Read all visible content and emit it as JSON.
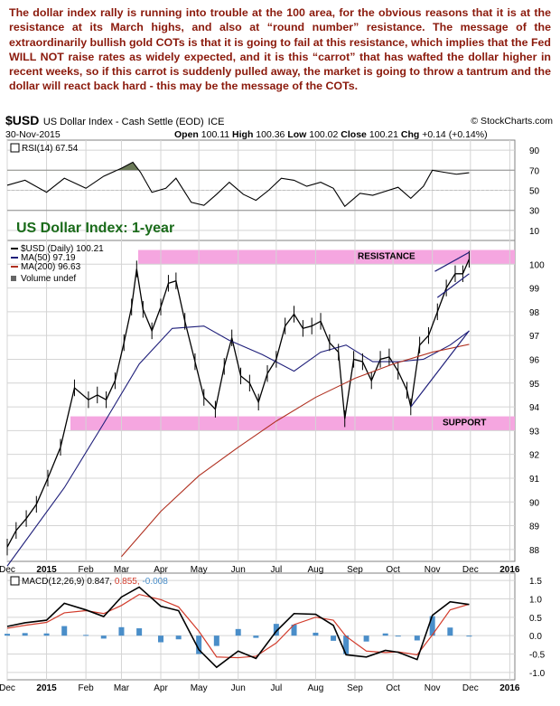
{
  "commentary": "The dollar index rally is running into trouble at the 100 area, for the obvious reasons that it is at the resistance at its March highs, and also at “round number” resistance. The message of the extraordinarily bullish gold COTs is that it is going to fail at this resistance, which implies that the Fed WILL NOT raise rates as widely expected, and it is this “carrot” that has wafted the dollar higher in recent weeks, so if this carrot is suddenly pulled away, the market is going to throw a tantrum and the dollar will react back hard - this may be the message of the COTs.",
  "header": {
    "symbol": "$USD",
    "name": "US Dollar Index - Cash Settle (EOD)",
    "exchange": "ICE",
    "date": "30-Nov-2015",
    "source": "© StockCharts.com",
    "open_label": "Open",
    "open": "100.11",
    "high_label": "High",
    "high": "100.36",
    "low_label": "Low",
    "low": "100.02",
    "close_label": "Close",
    "close": "100.21",
    "chg_label": "Chg",
    "chg": "+0.14 (+0.14%)"
  },
  "chart_data": {
    "type": "line",
    "title": "US Dollar Index: 1-year",
    "x_axis": {
      "ticks": [
        "Dec",
        "2015",
        "Feb",
        "Mar",
        "Apr",
        "May",
        "Jun",
        "Jul",
        "Aug",
        "Sep",
        "Oct",
        "Nov",
        "Dec",
        "2016"
      ],
      "range": [
        "2014-12-01",
        "2016-01-05"
      ]
    },
    "annotations": {
      "resistance": {
        "label": "RESISTANCE",
        "range": [
          100.0,
          100.6
        ]
      },
      "support": {
        "label": "SUPPORT",
        "range": [
          93.0,
          93.6
        ]
      }
    },
    "rsi": {
      "legend": "RSI(14) 67.54",
      "ylim": [
        0,
        100
      ],
      "yticks": [
        10,
        30,
        50,
        70,
        90
      ],
      "levels": [
        30,
        70
      ],
      "x": [
        "2014-12-01",
        "2014-12-15",
        "2015-01-01",
        "2015-01-15",
        "2015-02-01",
        "2015-02-15",
        "2015-03-01",
        "2015-03-10",
        "2015-03-16",
        "2015-03-25",
        "2015-04-05",
        "2015-04-13",
        "2015-04-25",
        "2015-05-05",
        "2015-05-15",
        "2015-05-25",
        "2015-06-05",
        "2015-06-15",
        "2015-06-25",
        "2015-07-05",
        "2015-07-15",
        "2015-07-25",
        "2015-08-05",
        "2015-08-15",
        "2015-08-24",
        "2015-09-05",
        "2015-09-15",
        "2015-09-25",
        "2015-10-05",
        "2015-10-15",
        "2015-10-25",
        "2015-11-01",
        "2015-11-10",
        "2015-11-20",
        "2015-11-30"
      ],
      "values": [
        55,
        60,
        48,
        62,
        52,
        64,
        72,
        78,
        68,
        48,
        52,
        62,
        38,
        35,
        46,
        58,
        46,
        40,
        50,
        62,
        60,
        54,
        58,
        52,
        34,
        47,
        45,
        49,
        53,
        42,
        54,
        70,
        68,
        66,
        67.54
      ]
    },
    "price": {
      "series": [
        {
          "name": "$USD (Daily) 100.21",
          "color": "#000000",
          "x": [
            "2014-12-01",
            "2014-12-08",
            "2014-12-16",
            "2014-12-24",
            "2015-01-02",
            "2015-01-12",
            "2015-01-23",
            "2015-02-03",
            "2015-02-10",
            "2015-02-17",
            "2015-02-24",
            "2015-03-03",
            "2015-03-09",
            "2015-03-13",
            "2015-03-18",
            "2015-03-25",
            "2015-04-01",
            "2015-04-07",
            "2015-04-13",
            "2015-04-20",
            "2015-04-28",
            "2015-05-05",
            "2015-05-14",
            "2015-05-21",
            "2015-05-27",
            "2015-06-03",
            "2015-06-10",
            "2015-06-17",
            "2015-06-24",
            "2015-07-01",
            "2015-07-08",
            "2015-07-15",
            "2015-07-22",
            "2015-07-29",
            "2015-08-05",
            "2015-08-12",
            "2015-08-19",
            "2015-08-24",
            "2015-08-31",
            "2015-09-07",
            "2015-09-14",
            "2015-09-21",
            "2015-09-28",
            "2015-10-05",
            "2015-10-12",
            "2015-10-15",
            "2015-10-22",
            "2015-10-29",
            "2015-11-05",
            "2015-11-12",
            "2015-11-19",
            "2015-11-25",
            "2015-11-30"
          ],
          "values": [
            88.1,
            88.8,
            89.3,
            89.9,
            91.0,
            92.3,
            94.8,
            94.3,
            94.5,
            94.3,
            95.1,
            96.7,
            98.2,
            99.8,
            98.1,
            97.2,
            98.2,
            99.2,
            99.3,
            97.6,
            95.9,
            94.4,
            93.9,
            95.7,
            96.9,
            95.3,
            95.0,
            94.2,
            95.4,
            96.0,
            97.4,
            97.9,
            97.3,
            97.4,
            97.6,
            96.7,
            96.3,
            93.5,
            96.0,
            95.9,
            95.1,
            96.0,
            96.1,
            95.5,
            94.7,
            94.0,
            96.6,
            97.0,
            98.0,
            99.0,
            99.6,
            99.6,
            100.21
          ]
        },
        {
          "name": "MA(50) 97.19",
          "color": "#1f1f7a",
          "x": [
            "2014-12-01",
            "2015-01-15",
            "2015-02-15",
            "2015-03-15",
            "2015-04-10",
            "2015-05-05",
            "2015-05-25",
            "2015-06-20",
            "2015-07-15",
            "2015-08-05",
            "2015-08-25",
            "2015-09-15",
            "2015-10-05",
            "2015-10-25",
            "2015-11-15",
            "2015-11-30"
          ],
          "values": [
            87.3,
            90.6,
            93.3,
            95.8,
            97.3,
            97.4,
            96.8,
            96.2,
            95.5,
            96.3,
            96.6,
            95.9,
            95.9,
            96.0,
            96.6,
            97.19
          ]
        },
        {
          "name": "MA(200) 96.63",
          "color": "#b03020",
          "x": [
            "2015-03-01",
            "2015-04-01",
            "2015-05-01",
            "2015-06-01",
            "2015-07-01",
            "2015-08-01",
            "2015-09-01",
            "2015-10-01",
            "2015-11-01",
            "2015-11-30"
          ],
          "values": [
            87.7,
            89.6,
            91.1,
            92.3,
            93.4,
            94.4,
            95.2,
            95.8,
            96.3,
            96.63
          ]
        }
      ],
      "volume_legend": "Volume undef",
      "ylim": [
        87.5,
        101.0
      ],
      "yticks": [
        88,
        89,
        90,
        91,
        92,
        93,
        94,
        95,
        96,
        97,
        98,
        99,
        100
      ]
    },
    "macd": {
      "legend": "MACD(12,26,9)",
      "values_text": [
        "0.847,",
        "0.855,",
        "-0.008"
      ],
      "ylim": [
        -1.2,
        1.7
      ],
      "yticks": [
        -1.0,
        -0.5,
        0.0,
        0.5,
        1.0,
        1.5
      ],
      "x": [
        "2014-12-01",
        "2014-12-15",
        "2015-01-01",
        "2015-01-15",
        "2015-02-01",
        "2015-02-15",
        "2015-03-01",
        "2015-03-15",
        "2015-04-01",
        "2015-04-15",
        "2015-05-01",
        "2015-05-15",
        "2015-06-01",
        "2015-06-15",
        "2015-07-01",
        "2015-07-15",
        "2015-08-01",
        "2015-08-15",
        "2015-08-25",
        "2015-09-10",
        "2015-09-25",
        "2015-10-05",
        "2015-10-20",
        "2015-11-01",
        "2015-11-15",
        "2015-11-30"
      ],
      "macd": [
        0.25,
        0.35,
        0.42,
        0.88,
        0.7,
        0.52,
        1.05,
        1.32,
        0.8,
        0.68,
        -0.38,
        -0.86,
        -0.42,
        -0.62,
        0.12,
        0.6,
        0.58,
        0.28,
        -0.52,
        -0.58,
        -0.4,
        -0.45,
        -0.65,
        0.55,
        0.92,
        0.847
      ],
      "signal": [
        0.2,
        0.28,
        0.36,
        0.62,
        0.68,
        0.6,
        0.82,
        1.12,
        0.98,
        0.78,
        0.12,
        -0.58,
        -0.6,
        -0.56,
        -0.2,
        0.3,
        0.5,
        0.42,
        -0.02,
        -0.42,
        -0.46,
        -0.44,
        -0.52,
        0.02,
        0.7,
        0.855
      ]
    }
  }
}
